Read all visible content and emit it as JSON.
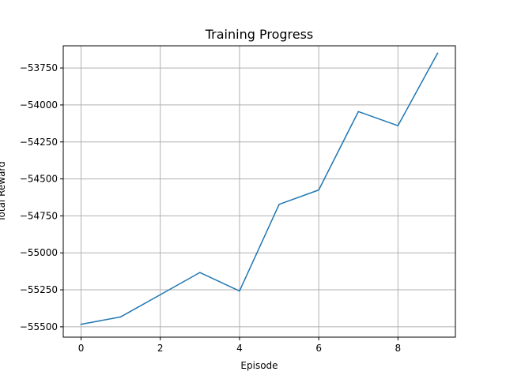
{
  "chart_data": {
    "type": "line",
    "title": "Training Progress",
    "xlabel": "Episode",
    "ylabel": "Total Reward",
    "xlim": [
      -0.45,
      9.45
    ],
    "ylim": [
      -55570,
      -53600
    ],
    "xticks": [
      0,
      2,
      4,
      6,
      8
    ],
    "yticks": [
      -55500,
      -55250,
      -55000,
      -54750,
      -54500,
      -54250,
      -54000,
      -53750
    ],
    "grid": true,
    "series": [
      {
        "color": "#1f77b4",
        "x": [
          0,
          1,
          2,
          3,
          4,
          5,
          6,
          7,
          8,
          9
        ],
        "y": [
          -55483,
          -55433,
          -55283,
          -55133,
          -55258,
          -54672,
          -54575,
          -54045,
          -54140,
          -53650
        ]
      }
    ]
  }
}
